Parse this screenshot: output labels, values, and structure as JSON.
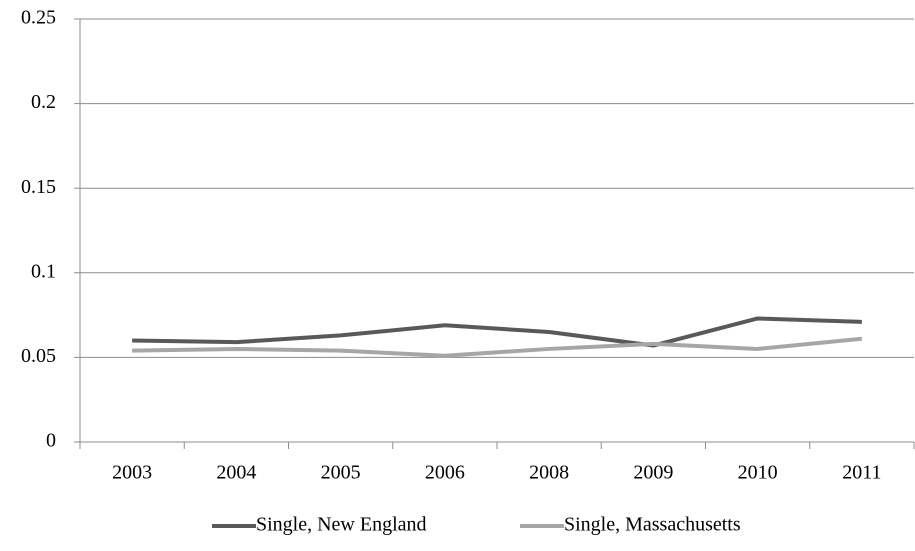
{
  "chart_data": {
    "type": "line",
    "categories": [
      "2003",
      "2004",
      "2005",
      "2006",
      "2008",
      "2009",
      "2010",
      "2011"
    ],
    "series": [
      {
        "name": "Single, New England",
        "color": "#595959",
        "values": [
          0.06,
          0.059,
          0.063,
          0.069,
          0.065,
          0.057,
          0.073,
          0.071
        ]
      },
      {
        "name": "Single, Massachusetts",
        "color": "#a6a6a6",
        "values": [
          0.054,
          0.055,
          0.054,
          0.051,
          0.055,
          0.058,
          0.055,
          0.061
        ]
      }
    ],
    "ylim": [
      0,
      0.25
    ],
    "yticks": [
      0,
      0.05,
      0.1,
      0.15,
      0.2,
      0.25
    ],
    "grid": true,
    "legend": "bottom"
  }
}
